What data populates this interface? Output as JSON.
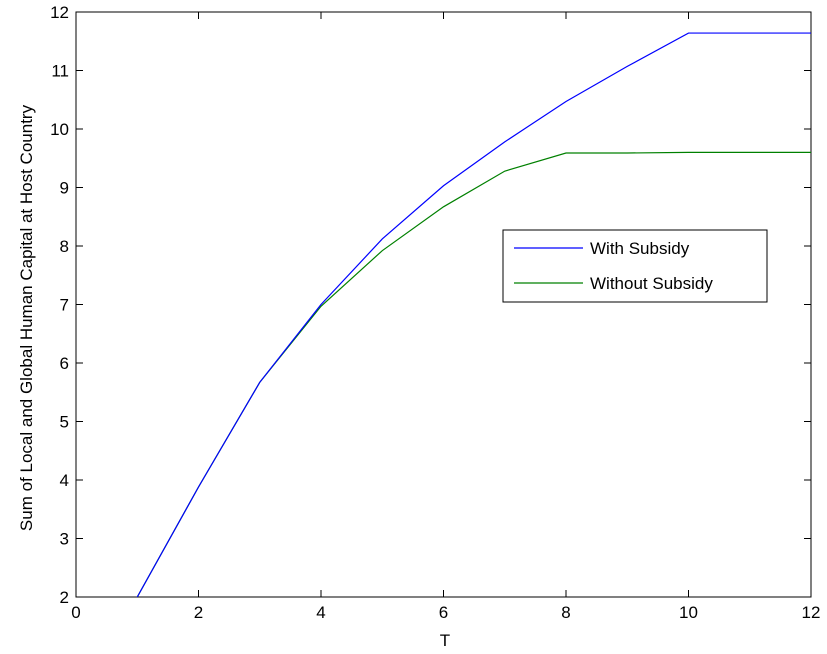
{
  "chart_data": {
    "type": "line",
    "title": "",
    "xlabel": "T",
    "ylabel": "Sum of Local and Global Human Capital at Host Country",
    "xlim": [
      0,
      12
    ],
    "ylim": [
      2,
      12
    ],
    "xticks": [
      0,
      2,
      4,
      6,
      8,
      10,
      12
    ],
    "yticks": [
      2,
      3,
      4,
      5,
      6,
      7,
      8,
      9,
      10,
      11,
      12
    ],
    "grid": false,
    "legend_position": "right",
    "series": [
      {
        "name": "With Subsidy",
        "color": "#0000ff",
        "x": [
          1,
          2,
          3,
          4,
          5,
          6,
          7,
          8,
          9,
          10,
          11,
          12
        ],
        "y": [
          2.0,
          3.88,
          5.67,
          7.0,
          8.12,
          9.03,
          9.78,
          10.47,
          11.07,
          11.64,
          11.64,
          11.64
        ]
      },
      {
        "name": "Without Subsidy",
        "color": "#008000",
        "x": [
          1,
          2,
          3,
          4,
          5,
          6,
          7,
          8,
          9,
          10,
          11,
          12
        ],
        "y": [
          2.0,
          3.88,
          5.67,
          6.97,
          7.92,
          8.67,
          9.28,
          9.59,
          9.59,
          9.6,
          9.6,
          9.6
        ]
      }
    ]
  }
}
